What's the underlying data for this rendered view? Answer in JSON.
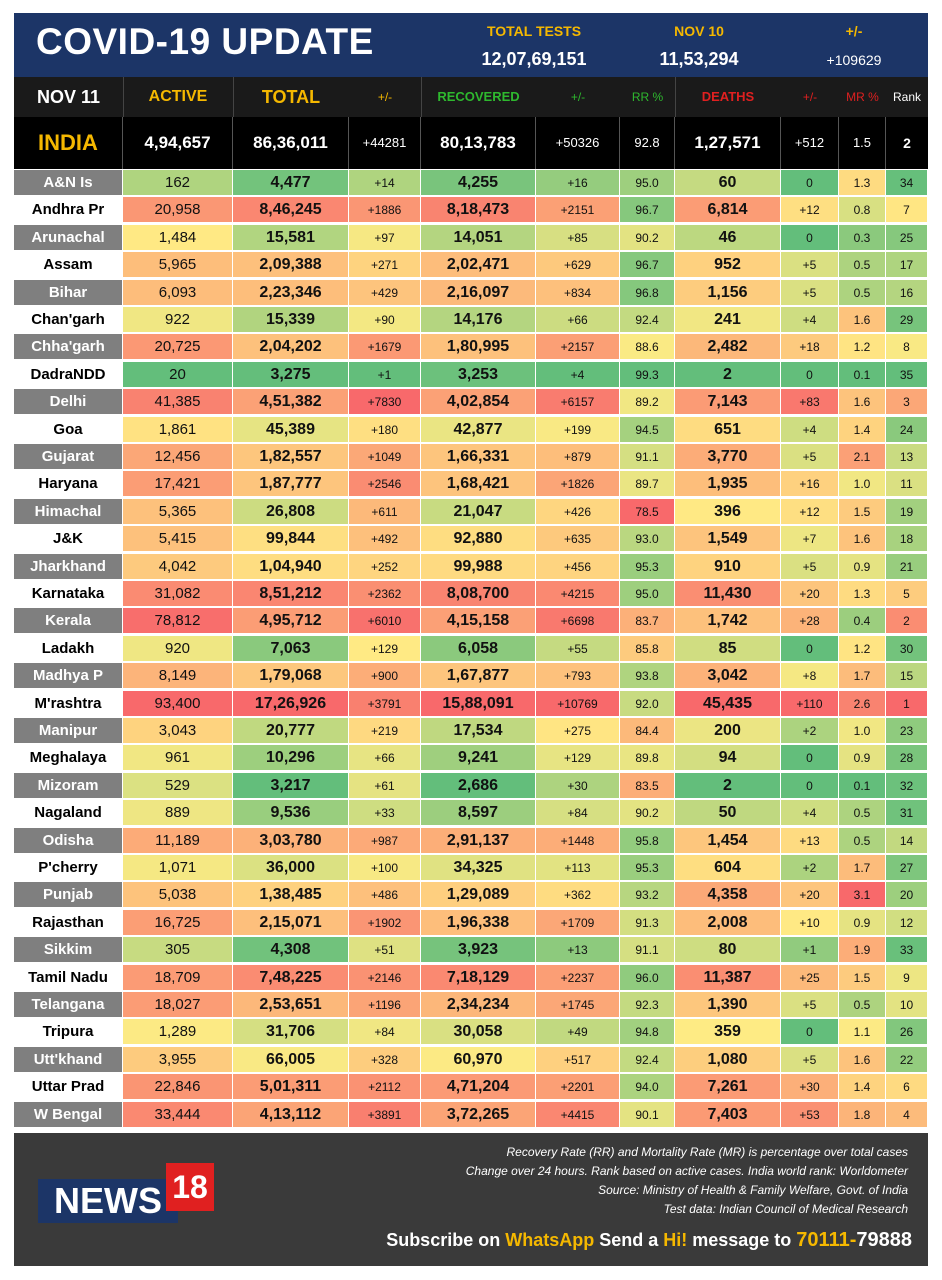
{
  "header": {
    "title": "COVID-19 UPDATE",
    "total_tests_label": "TOTAL TESTS",
    "total_tests_value": "12,07,69,151",
    "date_label": "NOV 10",
    "date_value": "11,53,294",
    "change_label": "+/-",
    "change_value": "+109629"
  },
  "columns": {
    "date": "NOV 11",
    "active": "ACTIVE",
    "total": "TOTAL",
    "total_change": "+/-",
    "recovered": "RECOVERED",
    "recovered_change": "+/-",
    "rr": "RR %",
    "deaths": "DEATHS",
    "deaths_change": "+/-",
    "mr": "MR %",
    "rank": "Rank"
  },
  "india": {
    "name": "INDIA",
    "active": "4,94,657",
    "total": "86,36,011",
    "total_change": "+44281",
    "recovered": "80,13,783",
    "recovered_change": "+50326",
    "rr": "92.8",
    "deaths": "1,27,571",
    "deaths_change": "+512",
    "mr": "1.5",
    "rank": "2"
  },
  "states": [
    [
      "A&N Is",
      "162",
      "4,477",
      "+14",
      "4,255",
      "+16",
      "95.0",
      "60",
      "0",
      "1.3",
      "34"
    ],
    [
      "Andhra Pr",
      "20,958",
      "8,46,245",
      "+1886",
      "8,18,473",
      "+2151",
      "96.7",
      "6,814",
      "+12",
      "0.8",
      "7"
    ],
    [
      "Arunachal",
      "1,484",
      "15,581",
      "+97",
      "14,051",
      "+85",
      "90.2",
      "46",
      "0",
      "0.3",
      "25"
    ],
    [
      "Assam",
      "5,965",
      "2,09,388",
      "+271",
      "2,02,471",
      "+629",
      "96.7",
      "952",
      "+5",
      "0.5",
      "17"
    ],
    [
      "Bihar",
      "6,093",
      "2,23,346",
      "+429",
      "2,16,097",
      "+834",
      "96.8",
      "1,156",
      "+5",
      "0.5",
      "16"
    ],
    [
      "Chan'garh",
      "922",
      "15,339",
      "+90",
      "14,176",
      "+66",
      "92.4",
      "241",
      "+4",
      "1.6",
      "29"
    ],
    [
      "Chha'garh",
      "20,725",
      "2,04,202",
      "+1679",
      "1,80,995",
      "+2157",
      "88.6",
      "2,482",
      "+18",
      "1.2",
      "8"
    ],
    [
      "DadraNDD",
      "20",
      "3,275",
      "+1",
      "3,253",
      "+4",
      "99.3",
      "2",
      "0",
      "0.1",
      "35"
    ],
    [
      "Delhi",
      "41,385",
      "4,51,382",
      "+7830",
      "4,02,854",
      "+6157",
      "89.2",
      "7,143",
      "+83",
      "1.6",
      "3"
    ],
    [
      "Goa",
      "1,861",
      "45,389",
      "+180",
      "42,877",
      "+199",
      "94.5",
      "651",
      "+4",
      "1.4",
      "24"
    ],
    [
      "Gujarat",
      "12,456",
      "1,82,557",
      "+1049",
      "1,66,331",
      "+879",
      "91.1",
      "3,770",
      "+5",
      "2.1",
      "13"
    ],
    [
      "Haryana",
      "17,421",
      "1,87,777",
      "+2546",
      "1,68,421",
      "+1826",
      "89.7",
      "1,935",
      "+16",
      "1.0",
      "11"
    ],
    [
      "Himachal",
      "5,365",
      "26,808",
      "+611",
      "21,047",
      "+426",
      "78.5",
      "396",
      "+12",
      "1.5",
      "19"
    ],
    [
      "J&K",
      "5,415",
      "99,844",
      "+492",
      "92,880",
      "+635",
      "93.0",
      "1,549",
      "+7",
      "1.6",
      "18"
    ],
    [
      "Jharkhand",
      "4,042",
      "1,04,940",
      "+252",
      "99,988",
      "+456",
      "95.3",
      "910",
      "+5",
      "0.9",
      "21"
    ],
    [
      "Karnataka",
      "31,082",
      "8,51,212",
      "+2362",
      "8,08,700",
      "+4215",
      "95.0",
      "11,430",
      "+20",
      "1.3",
      "5"
    ],
    [
      "Kerala",
      "78,812",
      "4,95,712",
      "+6010",
      "4,15,158",
      "+6698",
      "83.7",
      "1,742",
      "+28",
      "0.4",
      "2"
    ],
    [
      "Ladakh",
      "920",
      "7,063",
      "+129",
      "6,058",
      "+55",
      "85.8",
      "85",
      "0",
      "1.2",
      "30"
    ],
    [
      "Madhya P",
      "8,149",
      "1,79,068",
      "+900",
      "1,67,877",
      "+793",
      "93.8",
      "3,042",
      "+8",
      "1.7",
      "15"
    ],
    [
      "M'rashtra",
      "93,400",
      "17,26,926",
      "+3791",
      "15,88,091",
      "+10769",
      "92.0",
      "45,435",
      "+110",
      "2.6",
      "1"
    ],
    [
      "Manipur",
      "3,043",
      "20,777",
      "+219",
      "17,534",
      "+275",
      "84.4",
      "200",
      "+2",
      "1.0",
      "23"
    ],
    [
      "Meghalaya",
      "961",
      "10,296",
      "+66",
      "9,241",
      "+129",
      "89.8",
      "94",
      "0",
      "0.9",
      "28"
    ],
    [
      "Mizoram",
      "529",
      "3,217",
      "+61",
      "2,686",
      "+30",
      "83.5",
      "2",
      "0",
      "0.1",
      "32"
    ],
    [
      "Nagaland",
      "889",
      "9,536",
      "+33",
      "8,597",
      "+84",
      "90.2",
      "50",
      "+4",
      "0.5",
      "31"
    ],
    [
      "Odisha",
      "11,189",
      "3,03,780",
      "+987",
      "2,91,137",
      "+1448",
      "95.8",
      "1,454",
      "+13",
      "0.5",
      "14"
    ],
    [
      "P'cherry",
      "1,071",
      "36,000",
      "+100",
      "34,325",
      "+113",
      "95.3",
      "604",
      "+2",
      "1.7",
      "27"
    ],
    [
      "Punjab",
      "5,038",
      "1,38,485",
      "+486",
      "1,29,089",
      "+362",
      "93.2",
      "4,358",
      "+20",
      "3.1",
      "20"
    ],
    [
      "Rajasthan",
      "16,725",
      "2,15,071",
      "+1902",
      "1,96,338",
      "+1709",
      "91.3",
      "2,008",
      "+10",
      "0.9",
      "12"
    ],
    [
      "Sikkim",
      "305",
      "4,308",
      "+51",
      "3,923",
      "+13",
      "91.1",
      "80",
      "+1",
      "1.9",
      "33"
    ],
    [
      "Tamil Nadu",
      "18,709",
      "7,48,225",
      "+2146",
      "7,18,129",
      "+2237",
      "96.0",
      "11,387",
      "+25",
      "1.5",
      "9"
    ],
    [
      "Telangana",
      "18,027",
      "2,53,651",
      "+1196",
      "2,34,234",
      "+1745",
      "92.3",
      "1,390",
      "+5",
      "0.5",
      "10"
    ],
    [
      "Tripura",
      "1,289",
      "31,706",
      "+84",
      "30,058",
      "+49",
      "94.8",
      "359",
      "0",
      "1.1",
      "26"
    ],
    [
      "Utt'khand",
      "3,955",
      "66,005",
      "+328",
      "60,970",
      "+517",
      "92.4",
      "1,080",
      "+5",
      "1.6",
      "22"
    ],
    [
      "Uttar Prad",
      "22,846",
      "5,01,311",
      "+2112",
      "4,71,204",
      "+2201",
      "94.0",
      "7,261",
      "+30",
      "1.4",
      "6"
    ],
    [
      "W Bengal",
      "33,444",
      "4,13,112",
      "+3891",
      "3,72,265",
      "+4415",
      "90.1",
      "7,403",
      "+53",
      "1.8",
      "4"
    ]
  ],
  "colors": {
    "header_bg": "#1c3567",
    "accent_yellow": "#f5b800",
    "recovered_green": "#2eb82e",
    "deaths_red": "#e02020",
    "scale_green": "#63be7b",
    "scale_yellow": "#ffeb84",
    "scale_red": "#f8696b"
  },
  "footer": {
    "note1": "Recovery Rate (RR) and Mortality Rate (MR) is percentage over total cases",
    "note2": "Change over 24 hours. Rank based on active cases. India world rank: Worldometer",
    "note3": "Source: Ministry of Health & Family Welfare, Govt. of India",
    "note4": "Test data: Indian Council of Medical Research",
    "logo_text": "NEWS",
    "logo_number": "18",
    "subscribe_1": "Subscribe on ",
    "subscribe_app": "WhatsApp",
    "subscribe_2": " Send a ",
    "subscribe_hi": "Hi!",
    "subscribe_3": " message to ",
    "subscribe_phone": "70111-",
    "subscribe_phone2": "79888"
  }
}
